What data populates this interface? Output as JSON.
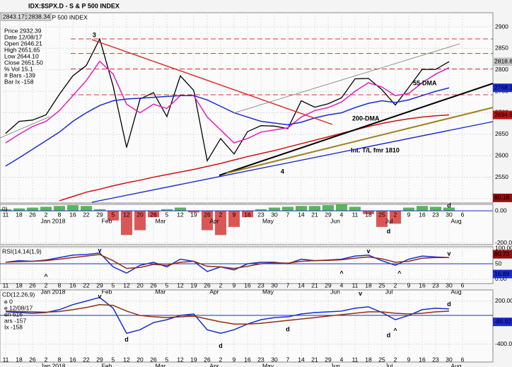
{
  "chart_data": [
    {
      "type": "line",
      "title": "IDX:$SPX.D - S & P 500 INDEX",
      "quote": [
        2843.17,
        2838.34
      ],
      "info": [
        "Price 2932.39",
        "Date 12/08/17",
        "Open 2646.21",
        "High 2651.65",
        "Low 2644.10",
        "Close 2651.50",
        "% Vol 15.1",
        "# Bars -139",
        "Bar Ix -158"
      ],
      "ylim": [
        2490,
        2933
      ],
      "yticks": [
        2500,
        2550,
        2600,
        2650,
        2700,
        2750,
        2800,
        2850,
        2900
      ],
      "grid": true,
      "hlines": [
        2872,
        2838,
        2802,
        2742
      ],
      "series": [
        {
          "color": "#000000",
          "values": [
            2652,
            2680,
            2683,
            2695,
            2743,
            2786,
            2810,
            2872,
            2762,
            2619,
            2732,
            2747,
            2691,
            2786,
            2752,
            2588,
            2640,
            2604,
            2656,
            2670,
            2669,
            2663,
            2728,
            2713,
            2721,
            2735,
            2779,
            2780,
            2754,
            2718,
            2759,
            2801,
            2801,
            2819
          ]
        },
        {
          "color": "#e020c0",
          "values": [
            2630,
            2650,
            2668,
            2680,
            2705,
            2740,
            2775,
            2820,
            2790,
            2720,
            2700,
            2720,
            2710,
            2740,
            2740,
            2690,
            2660,
            2630,
            2640,
            2655,
            2660,
            2665,
            2690,
            2705,
            2712,
            2725,
            2750,
            2770,
            2760,
            2740,
            2745,
            2770,
            2790,
            2805
          ]
        },
        {
          "name": "55-DMA",
          "color": "#1a2bd0",
          "values": [
            2576,
            2595,
            2615,
            2635,
            2655,
            2680,
            2700,
            2717,
            2728,
            2732,
            2734,
            2736,
            2738,
            2740,
            2740,
            2730,
            2715,
            2700,
            2690,
            2680,
            2676,
            2672,
            2678,
            2688,
            2695,
            2700,
            2712,
            2722,
            2728,
            2724,
            2730,
            2740,
            2750,
            2758
          ]
        },
        {
          "name": "200-DMA",
          "color": "#d01010",
          "values": [
            null,
            null,
            null,
            null,
            2495,
            2505,
            2515,
            2522,
            2530,
            2537,
            2543,
            2550,
            2556,
            2562,
            2568,
            2575,
            2582,
            2590,
            2598,
            2605,
            2612,
            2620,
            2628,
            2636,
            2644,
            2652,
            2660,
            2668,
            2675,
            2681,
            2686,
            2690,
            2693,
            2695
          ]
        }
      ],
      "right_labels": [
        {
          "value": 2818.82,
          "color": "#c8c8c8"
        },
        {
          "value": 2758.11,
          "color": "#1a2bd0"
        },
        {
          "value": 2694.99,
          "color": "#c01010"
        }
      ],
      "annotations": [
        {
          "text": "3",
          "x": 6.6,
          "y": 2880,
          "color": "#000080"
        },
        {
          "text": "4",
          "x": 20.6,
          "y": 2562,
          "color": "#000080"
        },
        {
          "text": "55-DMA",
          "x": 31.2,
          "y": 2768,
          "color": "#1a2bd0"
        },
        {
          "text": "200-DMA",
          "x": 26.8,
          "y": 2686,
          "color": "#d01010"
        },
        {
          "text": "Int. T/L fmr 1810",
          "x": 27.5,
          "y": 2612,
          "color": "#1a2bd0"
        }
      ],
      "xticks": [
        {
          "value": 0,
          "label": "11"
        },
        {
          "value": 1,
          "label": "18"
        },
        {
          "value": 2,
          "label": "26"
        },
        {
          "value": 3,
          "label": "2"
        },
        {
          "value": 4,
          "label": "8"
        },
        {
          "value": 5,
          "label": "16"
        },
        {
          "value": 6,
          "label": "22"
        },
        {
          "value": 7,
          "label": "29"
        },
        {
          "value": 8,
          "label": "5"
        },
        {
          "value": 9,
          "label": "12"
        },
        {
          "value": 10,
          "label": "20"
        },
        {
          "value": 11,
          "label": "26"
        },
        {
          "value": 12,
          "label": "5"
        },
        {
          "value": 13,
          "label": "12"
        },
        {
          "value": 14,
          "label": "19"
        },
        {
          "value": 15,
          "label": "26"
        },
        {
          "value": 16,
          "label": "2"
        },
        {
          "value": 17,
          "label": "9"
        },
        {
          "value": 18,
          "label": "16"
        },
        {
          "value": 19,
          "label": "23"
        },
        {
          "value": 20,
          "label": "30"
        },
        {
          "value": 21,
          "label": "7"
        },
        {
          "value": 22,
          "label": "14"
        },
        {
          "value": 23,
          "label": "21"
        },
        {
          "value": 24,
          "label": "29"
        },
        {
          "value": 25,
          "label": "4"
        },
        {
          "value": 26,
          "label": "11"
        },
        {
          "value": 27,
          "label": "18"
        },
        {
          "value": 28,
          "label": "25"
        },
        {
          "value": 29,
          "label": "2"
        },
        {
          "value": 30,
          "label": "9"
        },
        {
          "value": 31,
          "label": "16"
        },
        {
          "value": 32,
          "label": "23"
        },
        {
          "value": 33,
          "label": "30"
        },
        {
          "value": 34,
          "label": "6"
        }
      ],
      "months": [
        {
          "value": 4,
          "label": "Jan 2018"
        },
        {
          "value": 8,
          "label": "Feb"
        },
        {
          "value": 12,
          "label": "Mar"
        },
        {
          "value": 16,
          "label": "Apr"
        },
        {
          "value": 20,
          "label": "May"
        },
        {
          "value": 25,
          "label": "Jun"
        },
        {
          "value": 29,
          "label": "Jul"
        },
        {
          "value": 34,
          "label": "Aug"
        }
      ]
    },
    {
      "type": "bar",
      "title": "0)",
      "ylim": [
        -210,
        40
      ],
      "yticks": [
        {
          "value": 0,
          "label": "0.00"
        },
        {
          "value": -200,
          "label": "-200.00"
        }
      ],
      "colors": {
        "up": "#20a020",
        "down": "#d02020"
      },
      "values": [
        10,
        15,
        20,
        25,
        30,
        35,
        30,
        10,
        -60,
        -150,
        -120,
        -40,
        10,
        20,
        -10,
        -120,
        -150,
        -100,
        -40,
        10,
        20,
        25,
        30,
        30,
        35,
        40,
        25,
        -20,
        -100,
        -80,
        20,
        30,
        25,
        20
      ],
      "right_labels": [
        {
          "value": 80.18,
          "color": "#901010"
        }
      ],
      "annotations": [
        {
          "text": "d",
          "x": 28.5,
          "y": -130,
          "color": "#d01010"
        },
        {
          "text": "d",
          "x": 33,
          "y": 30,
          "color": "#d01010"
        }
      ]
    },
    {
      "type": "line",
      "title": "RSI(14,14(1,9)",
      "ylim": [
        -14,
        105
      ],
      "yticks": [
        {
          "value": 100,
          "label": "100.00"
        },
        50,
        {
          "value": 0,
          "label": "0.00"
        }
      ],
      "hlines": [
        50
      ],
      "series": [
        {
          "color": "#1a2bd0",
          "values": [
            55,
            60,
            58,
            62,
            70,
            78,
            80,
            85,
            40,
            20,
            45,
            55,
            40,
            65,
            58,
            25,
            40,
            30,
            50,
            55,
            55,
            50,
            65,
            60,
            62,
            65,
            75,
            78,
            60,
            45,
            65,
            75,
            72,
            70
          ]
        },
        {
          "color": "#903010",
          "values": [
            55,
            57,
            58,
            60,
            65,
            70,
            75,
            80,
            60,
            35,
            38,
            48,
            45,
            55,
            58,
            42,
            40,
            35,
            42,
            50,
            53,
            52,
            58,
            60,
            61,
            63,
            68,
            72,
            66,
            55,
            58,
            68,
            70,
            70
          ]
        }
      ],
      "right_labels": [
        {
          "value": 80.72,
          "color": "#901010"
        },
        {
          "value": 16.89,
          "color": "#1a2bd0"
        }
      ],
      "annotations": [
        {
          "text": "v",
          "x": 7,
          "y": 92,
          "color": "#d01010"
        },
        {
          "text": "v",
          "x": 27,
          "y": 90,
          "color": "#d01010"
        },
        {
          "text": "v",
          "x": 33,
          "y": 82,
          "color": "#d01010"
        },
        {
          "text": "^",
          "x": 3,
          "y": 8,
          "color": "#1a2bd0"
        },
        {
          "text": "^",
          "x": 25,
          "y": 18,
          "color": "#1a2bd0"
        },
        {
          "text": "^",
          "x": 29.3,
          "y": 18,
          "color": "#1a2bd0"
        }
      ]
    },
    {
      "type": "line",
      "title": "CD(12,26,9)",
      "info": [
        "e 0",
        "e 12/08/17",
        "en 616",
        "ars -157",
        "Ix -158"
      ],
      "ylim": [
        -650,
        355
      ],
      "yticks": [
        {
          "value": 200,
          "label": "200.00"
        },
        {
          "value": -400,
          "label": "-400.00"
        }
      ],
      "hlines": [
        0
      ],
      "series": [
        {
          "color": "#1a2bd0",
          "values": [
            50,
            40,
            30,
            40,
            80,
            150,
            200,
            250,
            100,
            -250,
            -200,
            -100,
            -60,
            0,
            20,
            -200,
            -250,
            -200,
            -120,
            -60,
            -30,
            -20,
            20,
            40,
            50,
            60,
            100,
            120,
            40,
            -60,
            0,
            80,
            100,
            90
          ]
        },
        {
          "color": "#903010",
          "values": [
            60,
            55,
            50,
            45,
            55,
            80,
            110,
            150,
            140,
            60,
            0,
            -20,
            -30,
            -20,
            -10,
            -50,
            -90,
            -120,
            -120,
            -110,
            -90,
            -70,
            -50,
            -30,
            -10,
            10,
            30,
            50,
            50,
            30,
            20,
            30,
            50,
            60
          ]
        }
      ],
      "right_labels": [
        {
          "value": -89.92,
          "color": "#1a2bd0"
        }
      ],
      "annotations": [
        {
          "text": "v",
          "x": 7,
          "y": 260,
          "color": "#d01010"
        },
        {
          "text": "v",
          "x": 26.4,
          "y": 300,
          "color": "#d01010"
        },
        {
          "text": "d",
          "x": 33,
          "y": 150,
          "color": "#d01010"
        },
        {
          "text": "d",
          "x": 9,
          "y": -340,
          "color": "#10a010"
        },
        {
          "text": "d",
          "x": 16,
          "y": -430,
          "color": "#10a010"
        },
        {
          "text": "d",
          "x": 21,
          "y": -200,
          "color": "#10a010"
        },
        {
          "text": "d",
          "x": 28.5,
          "y": -280,
          "color": "#d01010"
        },
        {
          "text": "^",
          "x": 29,
          "y": -220,
          "color": "#1a2bd0"
        }
      ]
    }
  ]
}
